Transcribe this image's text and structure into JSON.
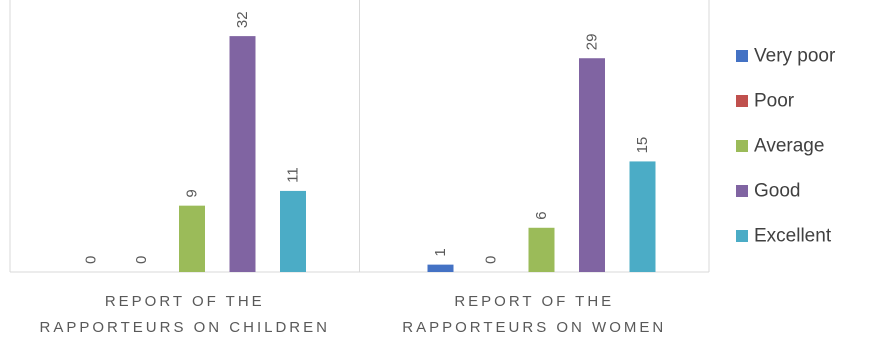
{
  "chart_data": {
    "type": "bar",
    "categories": [
      {
        "lines": [
          "REPORT OF THE",
          "RAPPORTEURS ON CHILDREN"
        ]
      },
      {
        "lines": [
          "REPORT OF THE",
          "RAPPORTEURS ON WOMEN"
        ]
      }
    ],
    "series": [
      {
        "name": "Very poor",
        "color": "#4472c4",
        "values": [
          0,
          1
        ]
      },
      {
        "name": "Poor",
        "color": "#c0504d",
        "values": [
          0,
          0
        ]
      },
      {
        "name": "Average",
        "color": "#9bbb59",
        "values": [
          9,
          6
        ]
      },
      {
        "name": "Good",
        "color": "#8064a2",
        "values": [
          32,
          29
        ]
      },
      {
        "name": "Excellent",
        "color": "#4bacc6",
        "values": [
          11,
          15
        ]
      }
    ],
    "data_labels": true,
    "ylim": [
      0,
      35
    ],
    "grid": false,
    "legend_position": "right"
  }
}
